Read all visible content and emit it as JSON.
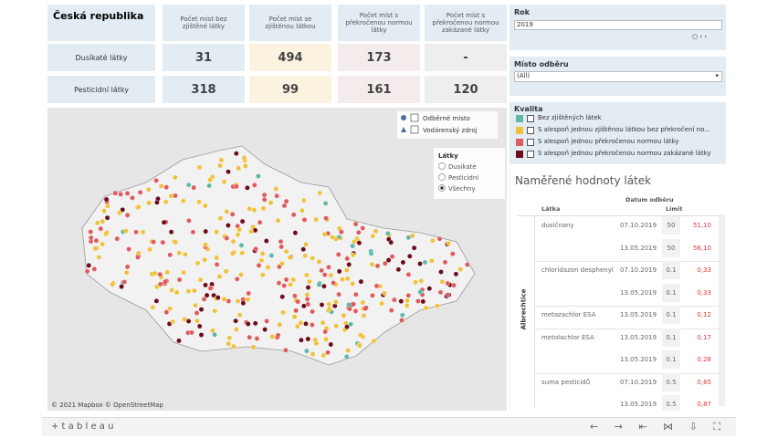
{
  "summary": {
    "title": "Česká republika",
    "columns": [
      "Počet míst bez zjištěné látky",
      "Počet míst se zjištěnou látkou",
      "Počet míst s překročenou normou látky",
      "Počet míst s překročenou normou zakázané látky"
    ],
    "rows": [
      {
        "label": "Dusíkaté látky",
        "values": [
          31,
          494,
          173,
          "-"
        ]
      },
      {
        "label": "Pesticidní látky",
        "values": [
          318,
          99,
          161,
          120
        ]
      }
    ]
  },
  "map": {
    "legend": [
      "Odběrné místo",
      "Vodárenský zdroj"
    ],
    "substances": {
      "title": "Látky",
      "options": [
        "Dusíkaté",
        "Pesticidní",
        "Všechny"
      ]
    },
    "attribution": "© 2021 Mapbox  © OpenStreetMap"
  },
  "filters": {
    "year": {
      "title": "Rok",
      "value": "2019"
    },
    "place": {
      "title": "Místo odběru",
      "value": "(All)"
    },
    "quality": {
      "title": "Kvalita",
      "items": [
        {
          "label": "Bez zjištěných látek",
          "color": "#5fb7a8"
        },
        {
          "label": "S alespoň jednou zjištěnou látkou bez překročení no...",
          "color": "#f0c23b"
        },
        {
          "label": "S alespoň jednou překročenou normou látky",
          "color": "#e05a5e"
        },
        {
          "label": "S alespoň jednou překročenou normou zakázané látky",
          "color": "#6b0b1c"
        }
      ]
    }
  },
  "measurements": {
    "title": "Naměřené hodnoty látek",
    "headers": [
      "Látka",
      "Datum odběru",
      "Limit"
    ],
    "group": "Albrechtice",
    "rows": [
      {
        "substance": "dusičnany",
        "date": "07.10.2019",
        "limit": "50",
        "value": "51,10"
      },
      {
        "date": "13.05.2019",
        "limit": "50",
        "value": "56,10"
      },
      {
        "substance": "chloridazon desphenyl",
        "date": "07.10.2019",
        "limit": "0.1",
        "value": "0,33"
      },
      {
        "date": "13.05.2019",
        "limit": "0.1",
        "value": "0,33"
      },
      {
        "substance": "metazachlor ESA",
        "date": "13.05.2019",
        "limit": "0.1",
        "value": "0,12"
      },
      {
        "substance": "metolachlor ESA",
        "date": "13.05.2019",
        "limit": "0.1",
        "value": "0,17"
      },
      {
        "date": "13.05.2019",
        "limit": "0.1",
        "value": "0,28"
      },
      {
        "substance": "suma pesticidů",
        "date": "07.10.2019",
        "limit": "0.5",
        "value": "0,65"
      },
      {
        "date": "13.05.2019",
        "limit": "0.5",
        "value": "0,87"
      }
    ]
  },
  "toolbar": {
    "logo": "+ t a b l e a u"
  }
}
